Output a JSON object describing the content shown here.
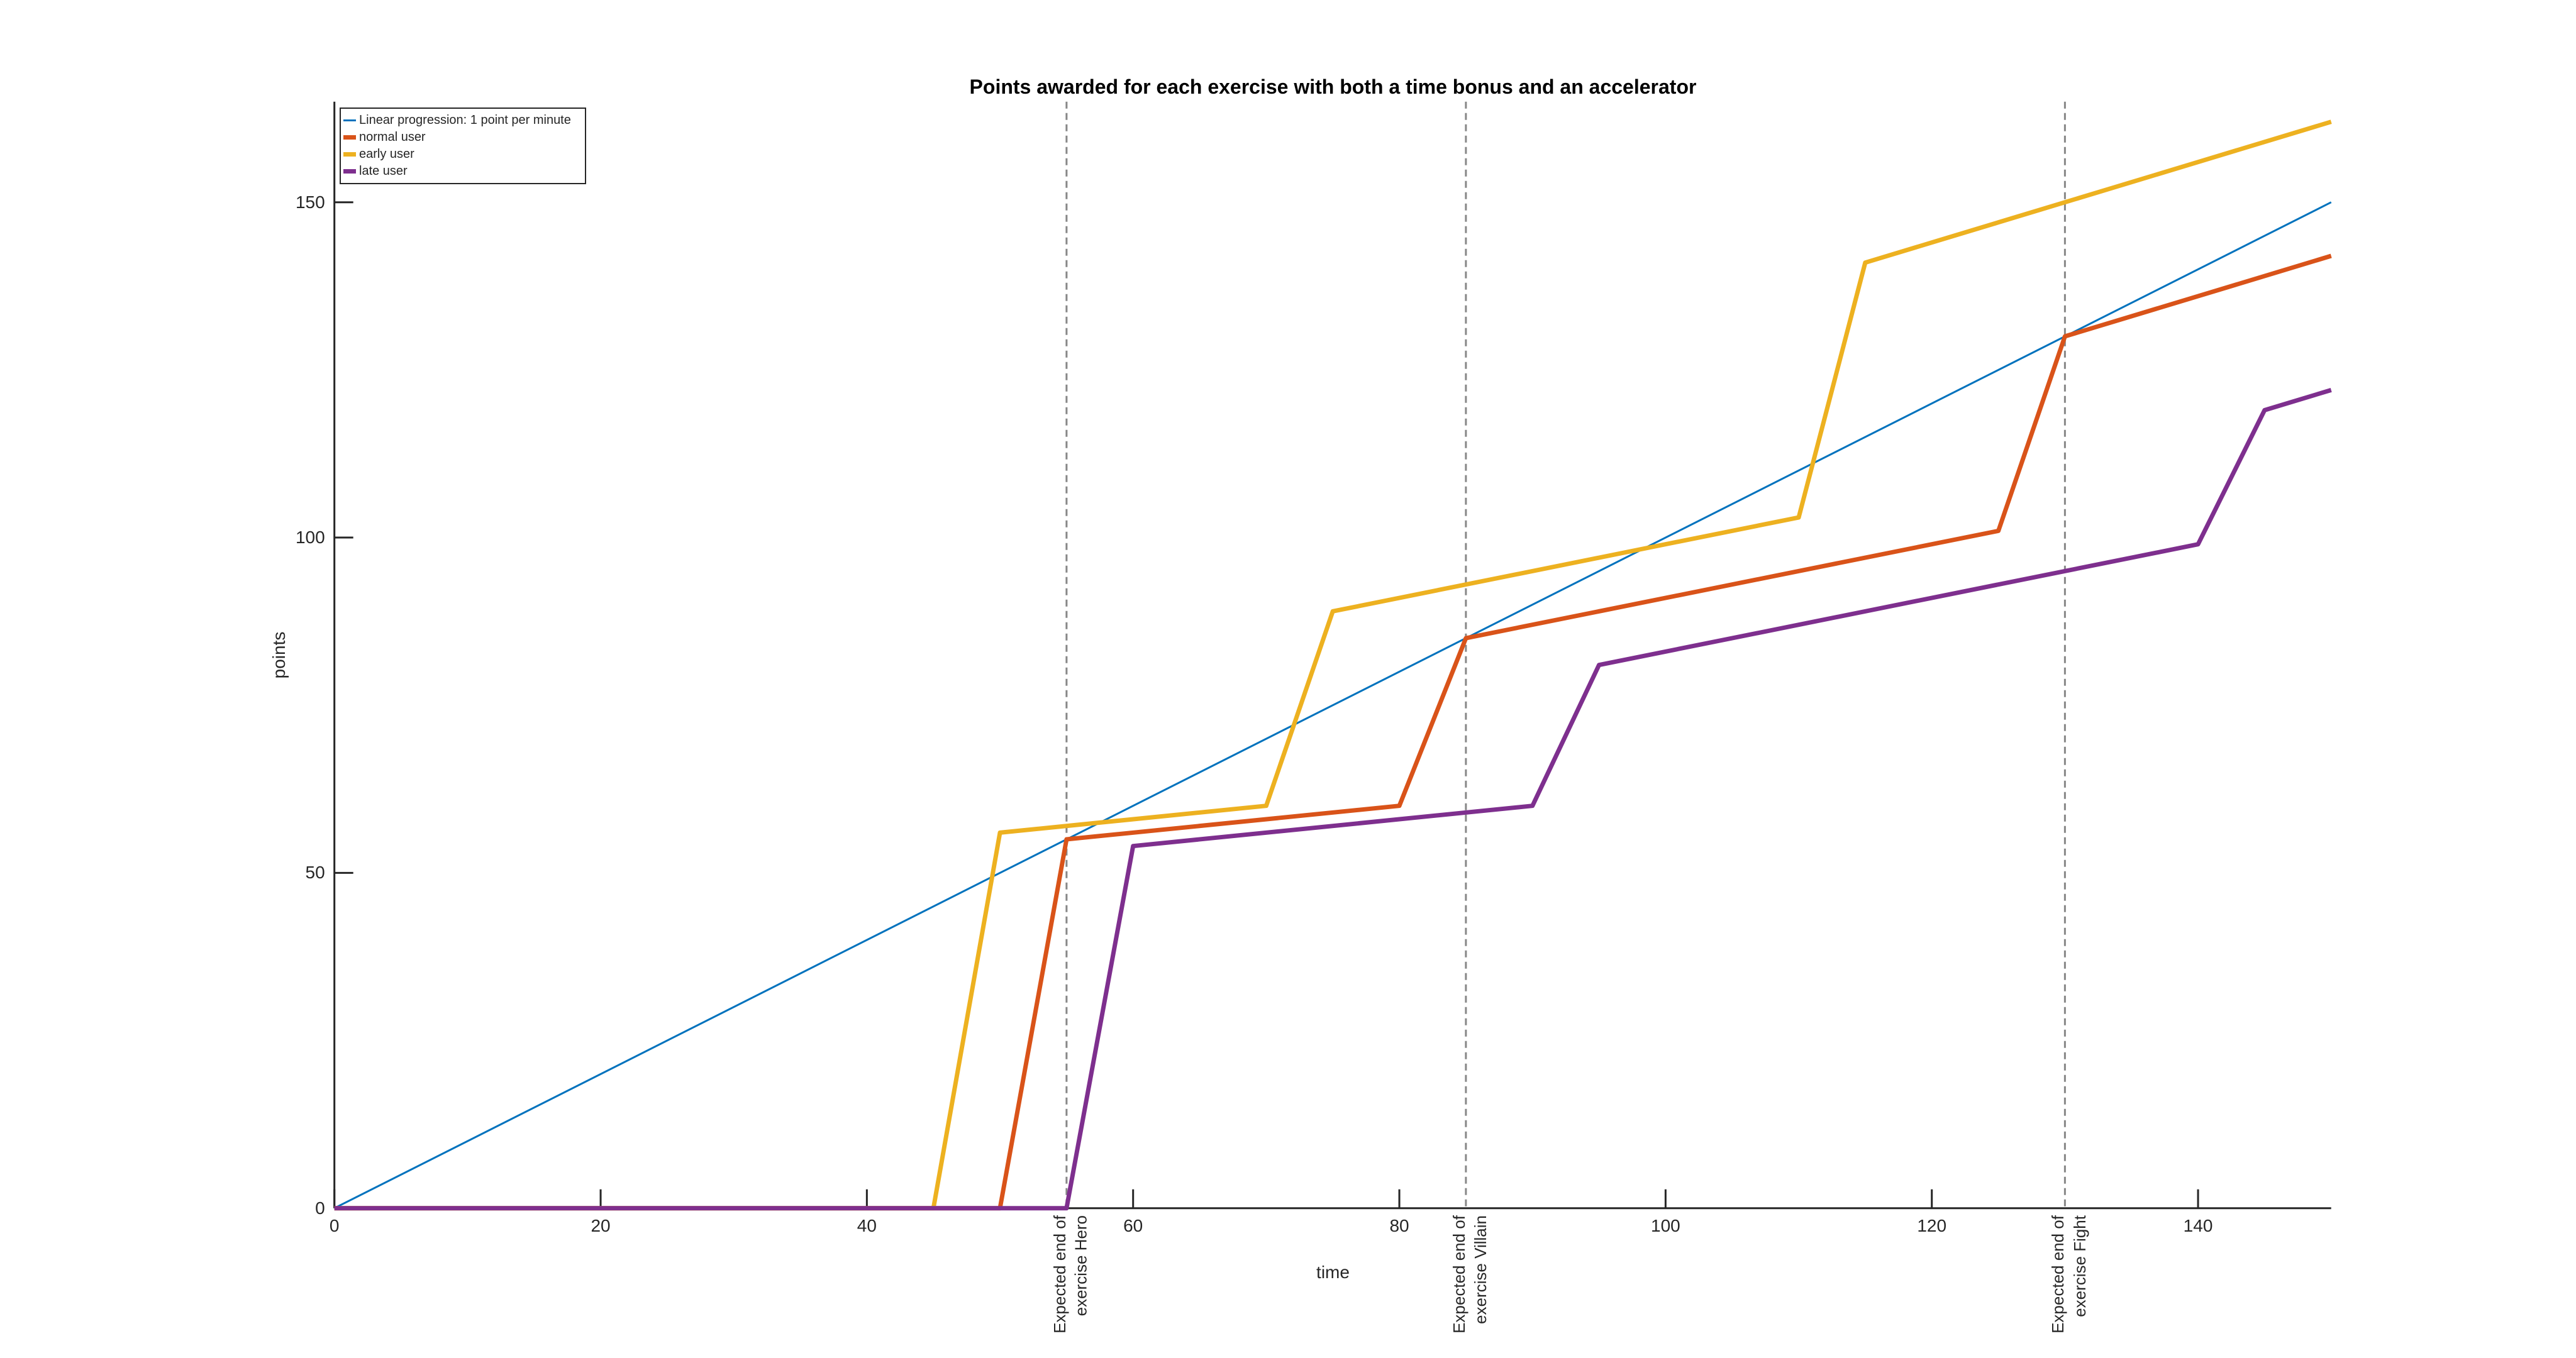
{
  "title": "Points awarded for each exercise with both a time bonus and an accelerator",
  "chart_data": {
    "type": "line",
    "title": "Points awarded for each exercise with both a time bonus and an accelerator",
    "xlabel": "time",
    "ylabel": "points",
    "xlim": [
      0,
      150
    ],
    "ylim": [
      0,
      165
    ],
    "xticks": [
      0,
      20,
      40,
      60,
      80,
      100,
      120,
      140
    ],
    "yticks": [
      0,
      50,
      100,
      150
    ],
    "grid": false,
    "legend_position": "top-left",
    "legend_entries": [
      "Linear progression: 1 point per minute",
      "normal user",
      "early user",
      "late user"
    ],
    "series": [
      {
        "name": "Linear progression: 1 point per minute",
        "color": "#0072BD",
        "line_width": "thin",
        "points": [
          [
            0,
            0
          ],
          [
            150,
            150
          ]
        ]
      },
      {
        "name": "normal user",
        "color": "#D95319",
        "line_width": "thick",
        "points": [
          [
            0,
            0
          ],
          [
            50,
            0
          ],
          [
            55,
            55
          ],
          [
            80,
            60
          ],
          [
            85,
            85
          ],
          [
            125,
            101
          ],
          [
            130,
            130
          ],
          [
            150,
            142
          ]
        ]
      },
      {
        "name": "early user",
        "color": "#EDB120",
        "line_width": "thick",
        "points": [
          [
            0,
            0
          ],
          [
            45,
            0
          ],
          [
            50,
            56
          ],
          [
            70,
            60
          ],
          [
            75,
            89
          ],
          [
            110,
            103
          ],
          [
            115,
            141
          ],
          [
            150,
            162
          ]
        ]
      },
      {
        "name": "late user",
        "color": "#7E2F8E",
        "line_width": "thick",
        "points": [
          [
            0,
            0
          ],
          [
            55,
            0
          ],
          [
            60,
            54
          ],
          [
            90,
            60
          ],
          [
            95,
            81
          ],
          [
            140,
            99
          ],
          [
            145,
            119
          ],
          [
            150,
            122
          ]
        ]
      }
    ],
    "annotations": [
      {
        "x": 55,
        "lines": [
          "Expected end of",
          "exercise Hero"
        ]
      },
      {
        "x": 85,
        "lines": [
          "Expected end of",
          "exercise Villain"
        ]
      },
      {
        "x": 130,
        "lines": [
          "Expected end of",
          "exercise Fight"
        ]
      }
    ],
    "annotation_line_color": "#878787",
    "axis_color": "#262626",
    "background": "#ffffff"
  }
}
